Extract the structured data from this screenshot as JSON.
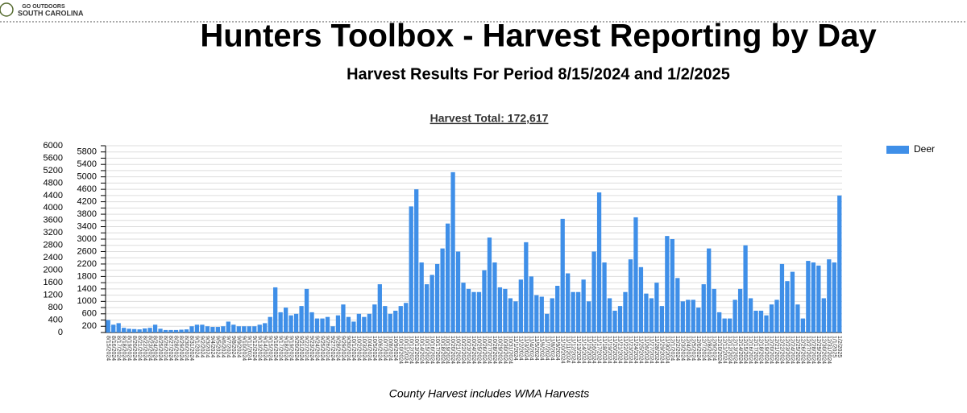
{
  "header": {
    "logo_top": "GO OUTDOORS",
    "logo_bottom": "SOUTH CAROLINA"
  },
  "chart_data": {
    "type": "bar",
    "title": "Hunters Toolbox - Harvest Reporting by Day",
    "subtitle": "Harvest Results For Period 8/15/2024 and 1/2/2025",
    "total_label": "Harvest Total: 172,617",
    "note": "County Harvest includes WMA Harvests",
    "ylim": [
      0,
      6000
    ],
    "yticks": [
      0,
      200,
      400,
      600,
      800,
      1000,
      1200,
      1400,
      1600,
      1800,
      2000,
      2200,
      2400,
      2600,
      2800,
      3000,
      3200,
      3400,
      3600,
      3800,
      4000,
      4200,
      4400,
      4600,
      4800,
      5000,
      5200,
      5400,
      5600,
      5800,
      6000
    ],
    "grid": true,
    "legend": "right",
    "categories": [
      "8/15/2024",
      "8/16/2024",
      "8/17/2024",
      "8/18/2024",
      "8/19/2024",
      "8/20/2024",
      "8/21/2024",
      "8/22/2024",
      "8/23/2024",
      "8/24/2024",
      "8/25/2024",
      "8/26/2024",
      "8/27/2024",
      "8/28/2024",
      "8/29/2024",
      "8/30/2024",
      "8/31/2024",
      "9/1/2024",
      "9/2/2024",
      "9/3/2024",
      "9/4/2024",
      "9/5/2024",
      "9/6/2024",
      "9/7/2024",
      "9/8/2024",
      "9/9/2024",
      "9/10/2024",
      "9/11/2024",
      "9/12/2024",
      "9/13/2024",
      "9/14/2024",
      "9/15/2024",
      "9/16/2024",
      "9/17/2024",
      "9/18/2024",
      "9/19/2024",
      "9/20/2024",
      "9/21/2024",
      "9/22/2024",
      "9/23/2024",
      "9/24/2024",
      "9/25/2024",
      "9/26/2024",
      "9/27/2024",
      "9/28/2024",
      "9/29/2024",
      "9/30/2024",
      "10/1/2024",
      "10/2/2024",
      "10/3/2024",
      "10/4/2024",
      "10/5/2024",
      "10/6/2024",
      "10/7/2024",
      "10/8/2024",
      "10/9/2024",
      "10/10/2024",
      "10/11/2024",
      "10/12/2024",
      "10/13/2024",
      "10/14/2024",
      "10/15/2024",
      "10/16/2024",
      "10/17/2024",
      "10/18/2024",
      "10/19/2024",
      "10/20/2024",
      "10/21/2024",
      "10/22/2024",
      "10/23/2024",
      "10/24/2024",
      "10/25/2024",
      "10/26/2024",
      "10/27/2024",
      "10/28/2024",
      "10/29/2024",
      "10/30/2024",
      "10/31/2024",
      "11/1/2024",
      "11/2/2024",
      "11/3/2024",
      "11/4/2024",
      "11/5/2024",
      "11/6/2024",
      "11/7/2024",
      "11/8/2024",
      "11/9/2024",
      "11/10/2024",
      "11/11/2024",
      "11/12/2024",
      "11/13/2024",
      "11/14/2024",
      "11/15/2024",
      "11/16/2024",
      "11/17/2024",
      "11/18/2024",
      "11/19/2024",
      "11/20/2024",
      "11/21/2024",
      "11/22/2024",
      "11/23/2024",
      "11/24/2024",
      "11/25/2024",
      "11/26/2024",
      "11/27/2024",
      "11/28/2024",
      "11/29/2024",
      "11/30/2024",
      "12/1/2024",
      "12/2/2024",
      "12/3/2024",
      "12/4/2024",
      "12/5/2024",
      "12/6/2024",
      "12/7/2024",
      "12/8/2024",
      "12/9/2024",
      "12/10/2024",
      "12/11/2024",
      "12/12/2024",
      "12/13/2024",
      "12/14/2024",
      "12/15/2024",
      "12/16/2024",
      "12/17/2024",
      "12/18/2024",
      "12/19/2024",
      "12/20/2024",
      "12/21/2024",
      "12/22/2024",
      "12/23/2024",
      "12/24/2024",
      "12/25/2024",
      "12/26/2024",
      "12/27/2024",
      "12/28/2024",
      "12/29/2024",
      "12/30/2024",
      "12/31/2024",
      "1/1/2025",
      "1/2/2025"
    ],
    "series": [
      {
        "name": "Deer",
        "color": "#3f8fe8",
        "values": [
          400,
          250,
          300,
          150,
          120,
          110,
          100,
          130,
          150,
          250,
          120,
          80,
          80,
          80,
          90,
          100,
          200,
          250,
          250,
          200,
          180,
          180,
          200,
          350,
          250,
          200,
          200,
          200,
          200,
          250,
          300,
          500,
          1450,
          650,
          800,
          550,
          600,
          850,
          1400,
          650,
          450,
          450,
          500,
          200,
          550,
          900,
          500,
          350,
          600,
          500,
          600,
          900,
          1550,
          850,
          600,
          700,
          850,
          950,
          4050,
          4600,
          2250,
          1550,
          1850,
          2200,
          2700,
          3500,
          5150,
          2600,
          1600,
          1400,
          1300,
          1300,
          2000,
          3050,
          2250,
          1450,
          1400,
          1100,
          1000,
          1700,
          2900,
          1800,
          1200,
          1150,
          600,
          1100,
          1500,
          3650,
          1900,
          1300,
          1300,
          1700,
          1000,
          2600,
          4500,
          2250,
          1100,
          700,
          850,
          1300,
          2350,
          3700,
          2100,
          1250,
          1100,
          1600,
          850,
          3100,
          3000,
          1750,
          1000,
          1050,
          1050,
          800,
          1550,
          2700,
          1400,
          650,
          450,
          450,
          1050,
          1400,
          2800,
          1100,
          700,
          700,
          550,
          900,
          1050,
          2200,
          1650,
          1950,
          900,
          450,
          2300,
          2250,
          2150,
          1100,
          2350,
          2250,
          4400
        ]
      }
    ]
  }
}
